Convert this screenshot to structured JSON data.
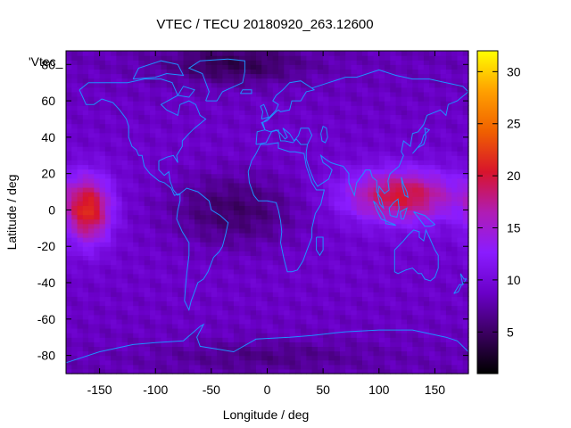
{
  "chart_data": {
    "type": "heatmap",
    "title": "VTEC / TECU 20180920_263.12600",
    "xlabel": "Longitude / deg",
    "ylabel": "Latitude / deg",
    "legend_label": "'Vtec_",
    "xlim": [
      -180,
      180
    ],
    "ylim": [
      -90,
      87.5
    ],
    "clim": [
      1,
      32
    ],
    "x_ticks": [
      -150,
      -100,
      -50,
      0,
      50,
      100,
      150
    ],
    "y_ticks": [
      -80,
      -60,
      -40,
      -20,
      0,
      20,
      40,
      60,
      80
    ],
    "colorbar_ticks": [
      5,
      10,
      15,
      20,
      25,
      30
    ],
    "colormap": [
      "#000000",
      "#3b0060",
      "#6a00c8",
      "#8a1cff",
      "#b01cb4",
      "#d8142c",
      "#f06000",
      "#ffa000",
      "#ffff00"
    ],
    "grid": false,
    "background_tec": 8,
    "enhancements": [
      {
        "name": "",
        "lon": -160,
        "lat": 0,
        "lon_halfwidth": 20,
        "lat_halfwidth": 18,
        "peak": 20
      },
      {
        "name": "",
        "lon": 120,
        "lat": 8,
        "lon_halfwidth": 50,
        "lat_halfwidth": 14,
        "peak": 19
      },
      {
        "name": "",
        "lon": -30,
        "lat": 0,
        "lon_halfwidth": 60,
        "lat_halfwidth": 20,
        "peak": -4
      },
      {
        "name": "",
        "lon": -30,
        "lat": 80,
        "lon_halfwidth": 60,
        "lat_halfwidth": 10,
        "peak": -4
      },
      {
        "name": "",
        "lon": 0,
        "lat": -80,
        "lon_halfwidth": 90,
        "lat_halfwidth": 8,
        "peak": -2
      }
    ],
    "coastline_color": "#1e90ff"
  }
}
